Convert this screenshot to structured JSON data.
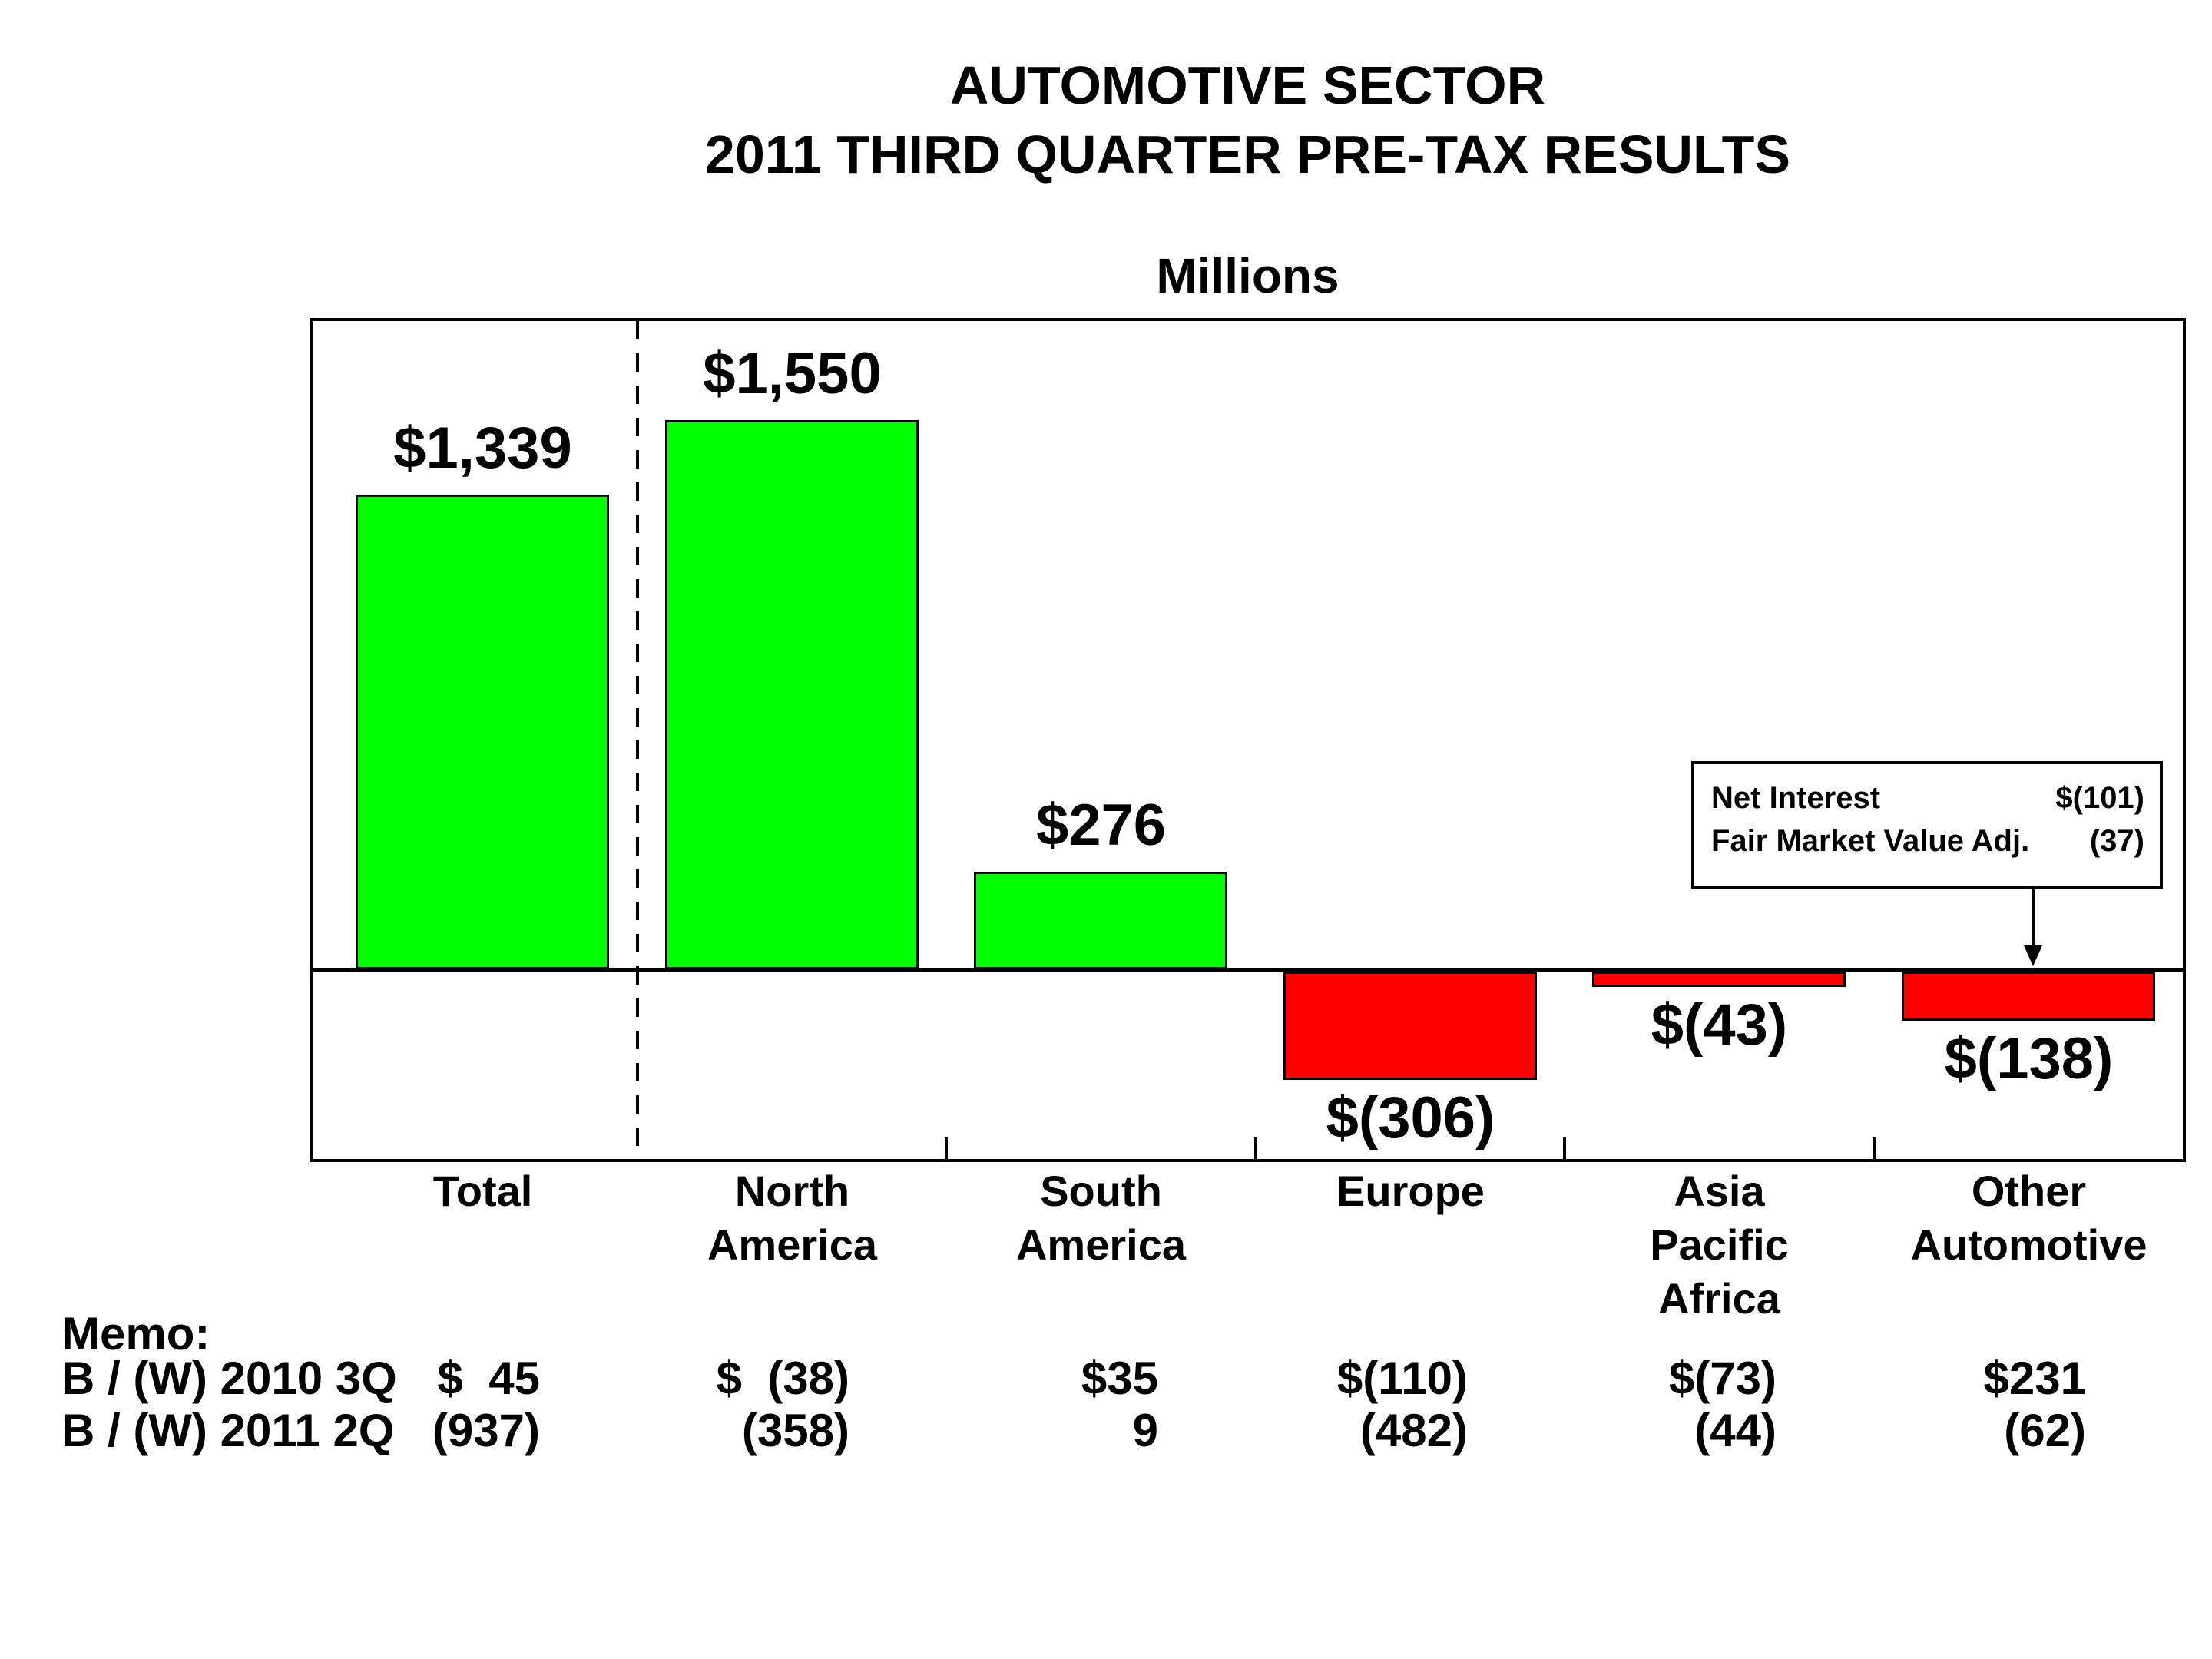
{
  "title": {
    "line1": "AUTOMOTIVE SECTOR",
    "line2": "2011 THIRD QUARTER PRE-TAX RESULTS"
  },
  "chart_data": {
    "type": "bar",
    "title": "AUTOMOTIVE SECTOR 2011 THIRD QUARTER PRE-TAX RESULTS",
    "unit_label": "Millions",
    "categories": [
      "Total",
      "North America",
      "South America",
      "Europe",
      "Asia Pacific Africa",
      "Other Automotive"
    ],
    "category_label_lines": [
      [
        "Total"
      ],
      [
        "North",
        "America"
      ],
      [
        "South",
        "America"
      ],
      [
        "Europe"
      ],
      [
        "Asia",
        "Pacific",
        "Africa"
      ],
      [
        "Other",
        "Automotive"
      ]
    ],
    "values": [
      1339,
      1550,
      276,
      -306,
      -43,
      -138
    ],
    "value_labels": [
      "$1,339",
      "$1,550",
      "$276",
      "$(306)",
      "$(43)",
      "$(138)"
    ],
    "positive_color": "#00FF00",
    "negative_color": "#FF0000",
    "bar_border_color": "#000000",
    "ylim": [
      -535,
      1830
    ],
    "gridlines": false,
    "zero_line": true,
    "legend": "none",
    "separator_dashed_after_category": "Total",
    "ticks_between_categories": true
  },
  "annotation": {
    "rows": [
      {
        "label": "Net Interest",
        "value": "$(101)"
      },
      {
        "label": "Fair Market Value Adj.",
        "value": "(37)"
      }
    ],
    "arrow_target_category": "Other Automotive"
  },
  "memo": {
    "heading": "Memo:",
    "rows": [
      {
        "label": "B / (W) 2010 3Q",
        "values": [
          "$  45",
          "$  (38)",
          "$35",
          "$(110)",
          "$(73)",
          "$231"
        ]
      },
      {
        "label": "B / (W) 2011 2Q",
        "values": [
          "(937)",
          "(358)",
          "9",
          "(482)",
          "(44)",
          "(62)"
        ]
      }
    ]
  }
}
